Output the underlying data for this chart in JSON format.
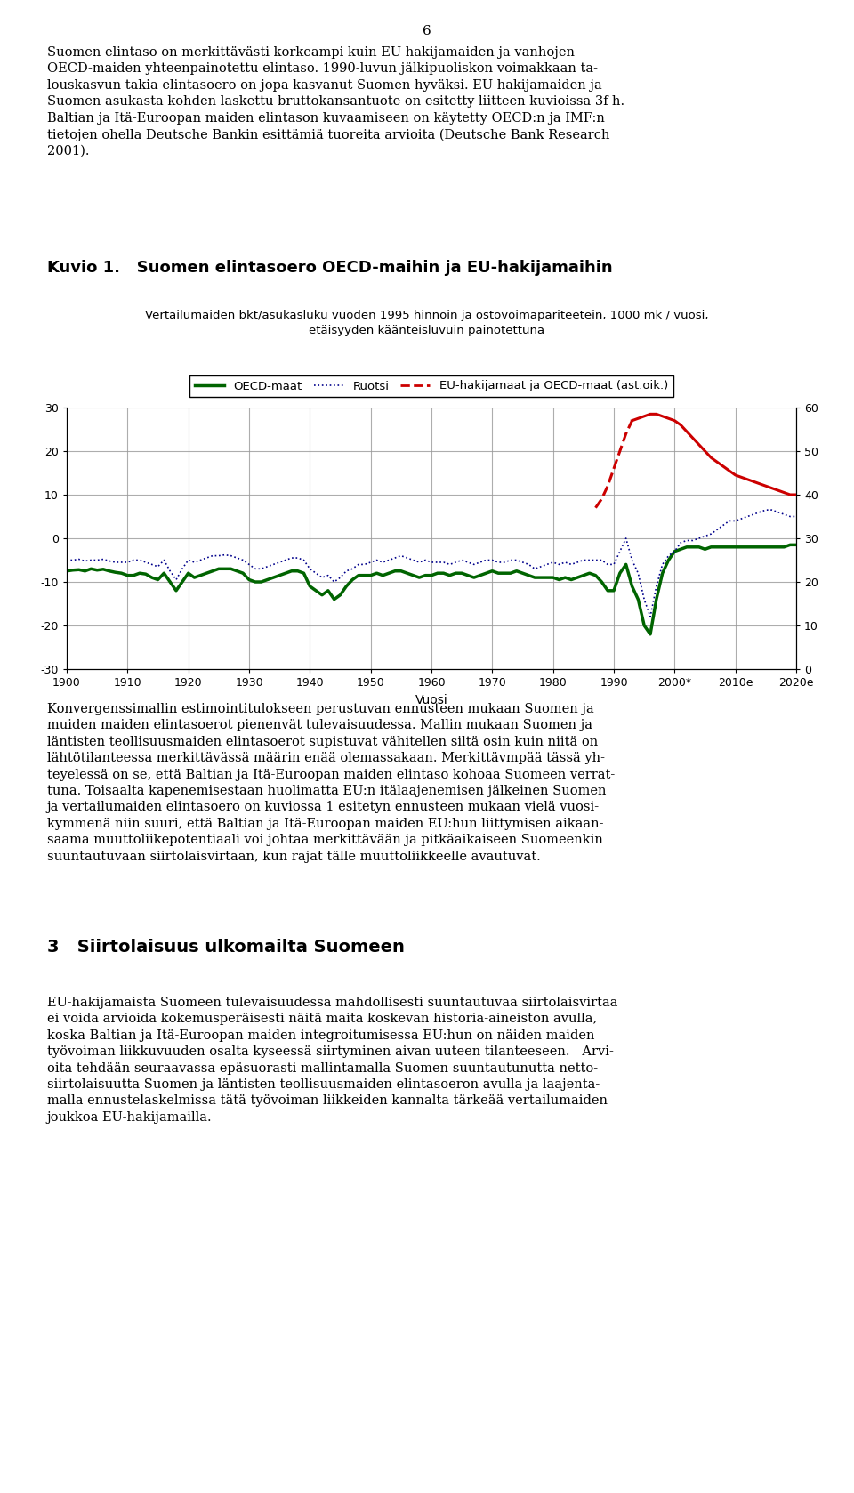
{
  "title_kuvio": "Kuvio 1.   Suomen elintasoero OECD-maihin ja EU-hakijamaihin",
  "subtitle": "Vertailumaiden bkt/asukasluku vuoden 1995 hinnoin ja ostovoimapariteetein, 1000 mk / vuosi,\netäisyyden käänteisluvuin painotettuna",
  "xlabel": "Vuosi",
  "xtick_labels": [
    "1900",
    "1910",
    "1920",
    "1930",
    "1940",
    "1950",
    "1960",
    "1970",
    "1980",
    "1990",
    "2000*",
    "2010e",
    "2020e"
  ],
  "legend_labels": [
    "OECD-maat",
    "Ruotsi",
    "EU-hakijamaat ja OECD-maat (ast.oik.)"
  ],
  "green_color": "#006400",
  "blue_color": "#00008B",
  "red_color": "#CC0000",
  "grid_color": "#999999",
  "page_number": "6",
  "body_text_top": "Suomen elintaso on merkittävästi korkeampi kuin EU-hakijamaiden ja vanhojen\nOECD-maiden yhteenpainotettu elintaso. 1990-luvun jälkipuoliskon voimakkaan ta-\nlouskasvun takia elintasoero on jopa kasvanut Suomen hyväksi. EU-hakijamaiden ja\nSuomen asukasta kohden laskettu bruttokansantuote on esitetty liitteen kuvioissa 3f-h.\nBaltian ja Itä-Euroopan maiden elintason kuvaamiseen on käytetty OECD:n ja IMF:n\ntietojen ohella Deutsche Bankin esittämiä tuoreita arvioita (Deutsche Bank Research\n2001).",
  "body_text_bottom1": "Konvergenssimallin estimointitulokseen perustuvan ennusteen mukaan Suomen ja\nmuiden maiden elintasoerot pienenvät tulevaisuudessa. Mallin mukaan Suomen ja\nläntisten teollisuusmaiden elintasoerot supistuvat vähitellen siltä osin kuin niitä on\nlähtötilanteessa merkittävässä määrin enää olemassakaan. Merkittävmpää tässä yh-\nteyelessä on se, että Baltian ja Itä-Euroopan maiden elintaso kohoaa Suomeen verrat-\ntuna. Toisaalta kapenemisestaan huolimatta EU:n itälaajenemisen jälkeinen Suomen\nja vertailumaiden elintasoero on kuviossa 1 esitetyn ennusteen mukaan vielä vuosi-\nkymmenä niin suuri, että Baltian ja Itä-Euroopan maiden EU:hun liittymisen aikaan-\nsaama muuttoliikepotentiaali voi johtaa merkittävään ja pitkäaikaiseen Suomeenkin\nsuuntautuvaan siirtolaisvirtaan, kun rajat tälle muuttoliikkeelle avautuvat.",
  "section_title": "3   Siirtolaisuus ulkomailta Suomeen",
  "body_text_bottom2": "EU-hakijamaista Suomeen tulevaisuudessa mahdollisesti suuntautuvaa siirtolaisvirtaa\nei voida arvioida kokemusperäisesti näitä maita koskevan historia-aineiston avulla,\nkoska Baltian ja Itä-Euroopan maiden integroitumisessa EU:hun on näiden maiden\ntyövoiman liikkuvuuden osalta kyseessä siirtyminen aivan uuteen tilanteeseen.   Arvi-\noita tehdään seuraavassa epäsuorasti mallintamalla Suomen suuntautunutta netto-\nsiirtolaisuutta Suomen ja läntisten teollisuusmaiden elintasoeron avulla ja laajenta-\nmalla ennustelaskelmissa tätä työvoiman liikkeiden kannalta tärkeää vertailumaiden\njoukkoa EU-hakijamailla."
}
